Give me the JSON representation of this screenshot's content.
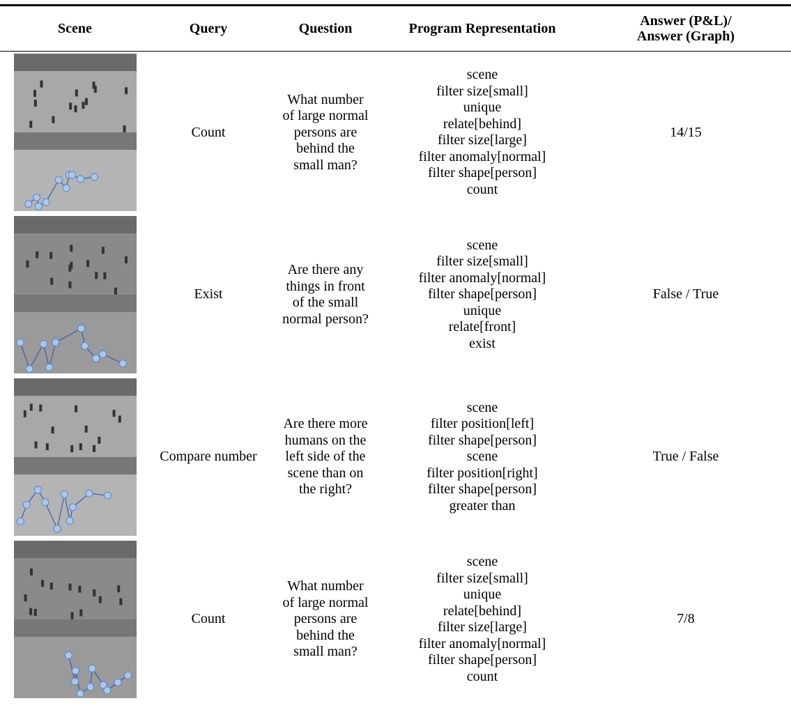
{
  "header": [
    "Scene",
    "Query",
    "Question",
    "Program Representation",
    [
      "Answer (P&L)/",
      "Answer (Graph)"
    ]
  ],
  "rows": [
    {
      "query": "Count",
      "question": [
        "What number",
        "of large normal",
        "persons are",
        "behind the",
        "small man?"
      ],
      "program": [
        "scene",
        "filter size[small]",
        "unique",
        "relate[behind]",
        "filter size[large]",
        "filter anomaly[normal]",
        "filter shape[person]",
        "count"
      ],
      "answer": "14/15"
    },
    {
      "query": "Exist",
      "question": [
        "Are there any",
        "things in front",
        "of the small",
        "normal person?"
      ],
      "program": [
        "scene",
        "filter size[small]",
        "filter anomaly[normal]",
        "filter shape[person]",
        "unique",
        "relate[front]",
        "exist"
      ],
      "answer": "False / True"
    },
    {
      "query": "Compare number",
      "question": [
        "Are there more",
        "humans on the",
        "left side of the",
        "scene than on",
        "the right?"
      ],
      "program": [
        "scene",
        "filter position[left]",
        "filter shape[person]",
        "scene",
        "filter position[right]",
        "filter shape[person]",
        "greater than"
      ],
      "answer": "True / False"
    },
    {
      "query": "Count",
      "question": [
        "What number",
        "of large normal",
        "persons are",
        "behind the",
        "small man?"
      ],
      "program": [
        "scene",
        "filter size[small]",
        "unique",
        "relate[behind]",
        "filter size[large]",
        "filter anomaly[normal]",
        "filter shape[person]",
        "count"
      ],
      "answer": "7/8"
    }
  ]
}
